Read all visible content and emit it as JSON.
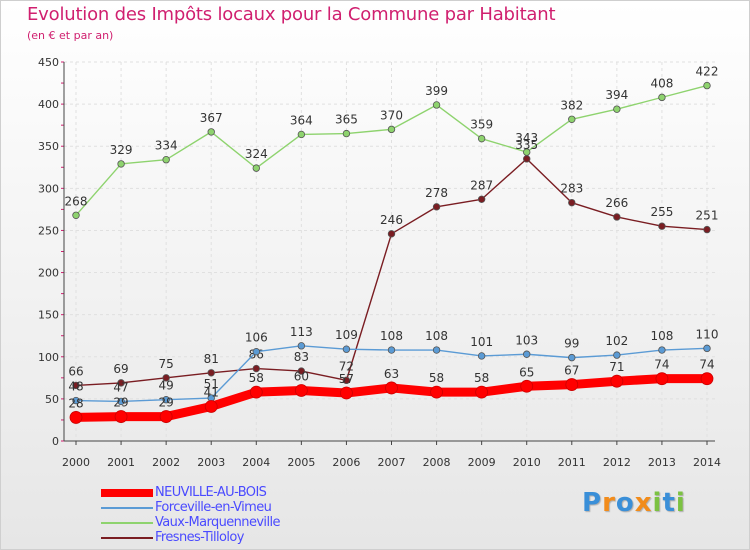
{
  "title": "Evolution des Impôts locaux pour la Commune par Habitant",
  "subtitle": "(en € et par an)",
  "brand": {
    "letters": [
      "P",
      "r",
      "o",
      "x",
      "i",
      "t",
      "i"
    ],
    "colors": [
      "#3a8fd8",
      "#f28c1b",
      "#3a8fd8",
      "#f28c1b",
      "#7cc242",
      "#3a8fd8",
      "#7cc242"
    ]
  },
  "chart_data": {
    "type": "line",
    "x": [
      2000,
      2001,
      2002,
      2003,
      2004,
      2005,
      2006,
      2007,
      2008,
      2009,
      2010,
      2011,
      2012,
      2013,
      2014
    ],
    "ylim": [
      0,
      450
    ],
    "yticks": [
      0,
      50,
      100,
      150,
      200,
      250,
      300,
      350,
      400,
      450
    ],
    "grid": true,
    "legend_position": "bottom-left",
    "series": [
      {
        "name": "Vaux-Marquenneville",
        "color": "#8ed36e",
        "values": [
          268,
          329,
          334,
          367,
          324,
          364,
          365,
          370,
          399,
          359,
          343,
          382,
          394,
          408,
          422
        ],
        "labels": [
          "268",
          "329",
          "334",
          "367",
          "324",
          "364",
          "365",
          "370",
          "399",
          "359",
          "343",
          "382",
          "394",
          "408",
          "422"
        ]
      },
      {
        "name": "Fresnes-Tilloloy",
        "color": "#7a1d22",
        "values": [
          66,
          69,
          75,
          81,
          86,
          83,
          72,
          246,
          278,
          287,
          335,
          283,
          266,
          255,
          251
        ],
        "labels": [
          "66",
          "69",
          "75",
          "81",
          "86",
          "83",
          "72",
          "246",
          "278",
          "287",
          "335",
          "283",
          "266",
          "255",
          "251"
        ]
      },
      {
        "name": "Forceville-en-Vimeu",
        "color": "#5b9bd5",
        "values": [
          48,
          47,
          49,
          51,
          106,
          113,
          109,
          108,
          108,
          101,
          103,
          99,
          102,
          108,
          110
        ],
        "labels": [
          "48",
          "47",
          "49",
          "51",
          "106",
          "113",
          "109",
          "108",
          "108",
          "101",
          "103",
          "99",
          "102",
          "108",
          "110"
        ]
      },
      {
        "name": "NEUVILLE-AU-BOIS",
        "color": "#ff0000",
        "values": [
          28,
          29,
          29,
          41,
          58,
          60,
          57,
          63,
          58,
          58,
          65,
          67,
          71,
          74,
          74
        ],
        "labels": [
          "28",
          "29",
          "29",
          "41",
          "58",
          "60",
          "57",
          "63",
          "58",
          "58",
          "65",
          "67",
          "71",
          "74",
          "74"
        ]
      }
    ],
    "legend_order": [
      "NEUVILLE-AU-BOIS",
      "Forceville-en-Vimeu",
      "Vaux-Marquenneville",
      "Fresnes-Tilloloy"
    ]
  }
}
